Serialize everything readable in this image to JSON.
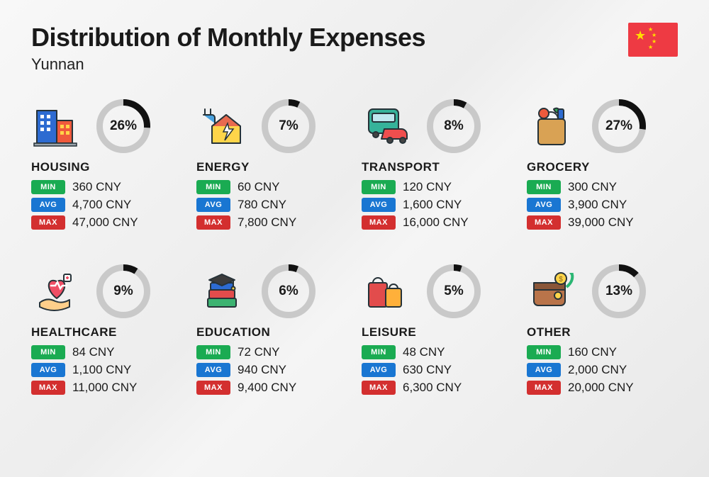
{
  "title": "Distribution of Monthly Expenses",
  "subtitle": "Yunnan",
  "currency": "CNY",
  "labels": {
    "min": "MIN",
    "avg": "AVG",
    "max": "MAX"
  },
  "badge_colors": {
    "min": "#1aab52",
    "avg": "#1976d2",
    "max": "#d32f2f"
  },
  "donut": {
    "size": 76,
    "stroke_width": 9,
    "track_color": "#c9c9c9",
    "progress_color": "#111111",
    "pct_fontsize": 19,
    "pct_fontweight": 800
  },
  "flag": {
    "bg": "#ee3a43",
    "star_color": "#ffde00"
  },
  "typography": {
    "title_fontsize": 36,
    "title_fontweight": 800,
    "subtitle_fontsize": 22,
    "category_fontsize": 17,
    "category_fontweight": 800,
    "value_fontsize": 17
  },
  "categories": [
    {
      "key": "housing",
      "name": "HOUSING",
      "percent": 26,
      "min": "360 CNY",
      "avg": "4,700 CNY",
      "max": "47,000 CNY",
      "icon": "buildings"
    },
    {
      "key": "energy",
      "name": "ENERGY",
      "percent": 7,
      "min": "60 CNY",
      "avg": "780 CNY",
      "max": "7,800 CNY",
      "icon": "energy-house"
    },
    {
      "key": "transport",
      "name": "TRANSPORT",
      "percent": 8,
      "min": "120 CNY",
      "avg": "1,600 CNY",
      "max": "16,000 CNY",
      "icon": "bus-car"
    },
    {
      "key": "grocery",
      "name": "GROCERY",
      "percent": 27,
      "min": "300 CNY",
      "avg": "3,900 CNY",
      "max": "39,000 CNY",
      "icon": "grocery-bag"
    },
    {
      "key": "healthcare",
      "name": "HEALTHCARE",
      "percent": 9,
      "min": "84 CNY",
      "avg": "1,100 CNY",
      "max": "11,000 CNY",
      "icon": "heart-hand"
    },
    {
      "key": "education",
      "name": "EDUCATION",
      "percent": 6,
      "min": "72 CNY",
      "avg": "940 CNY",
      "max": "9,400 CNY",
      "icon": "grad-books"
    },
    {
      "key": "leisure",
      "name": "LEISURE",
      "percent": 5,
      "min": "48 CNY",
      "avg": "630 CNY",
      "max": "6,300 CNY",
      "icon": "shopping-bags"
    },
    {
      "key": "other",
      "name": "OTHER",
      "percent": 13,
      "min": "160 CNY",
      "avg": "2,000 CNY",
      "max": "20,000 CNY",
      "icon": "wallet-arrow"
    }
  ]
}
